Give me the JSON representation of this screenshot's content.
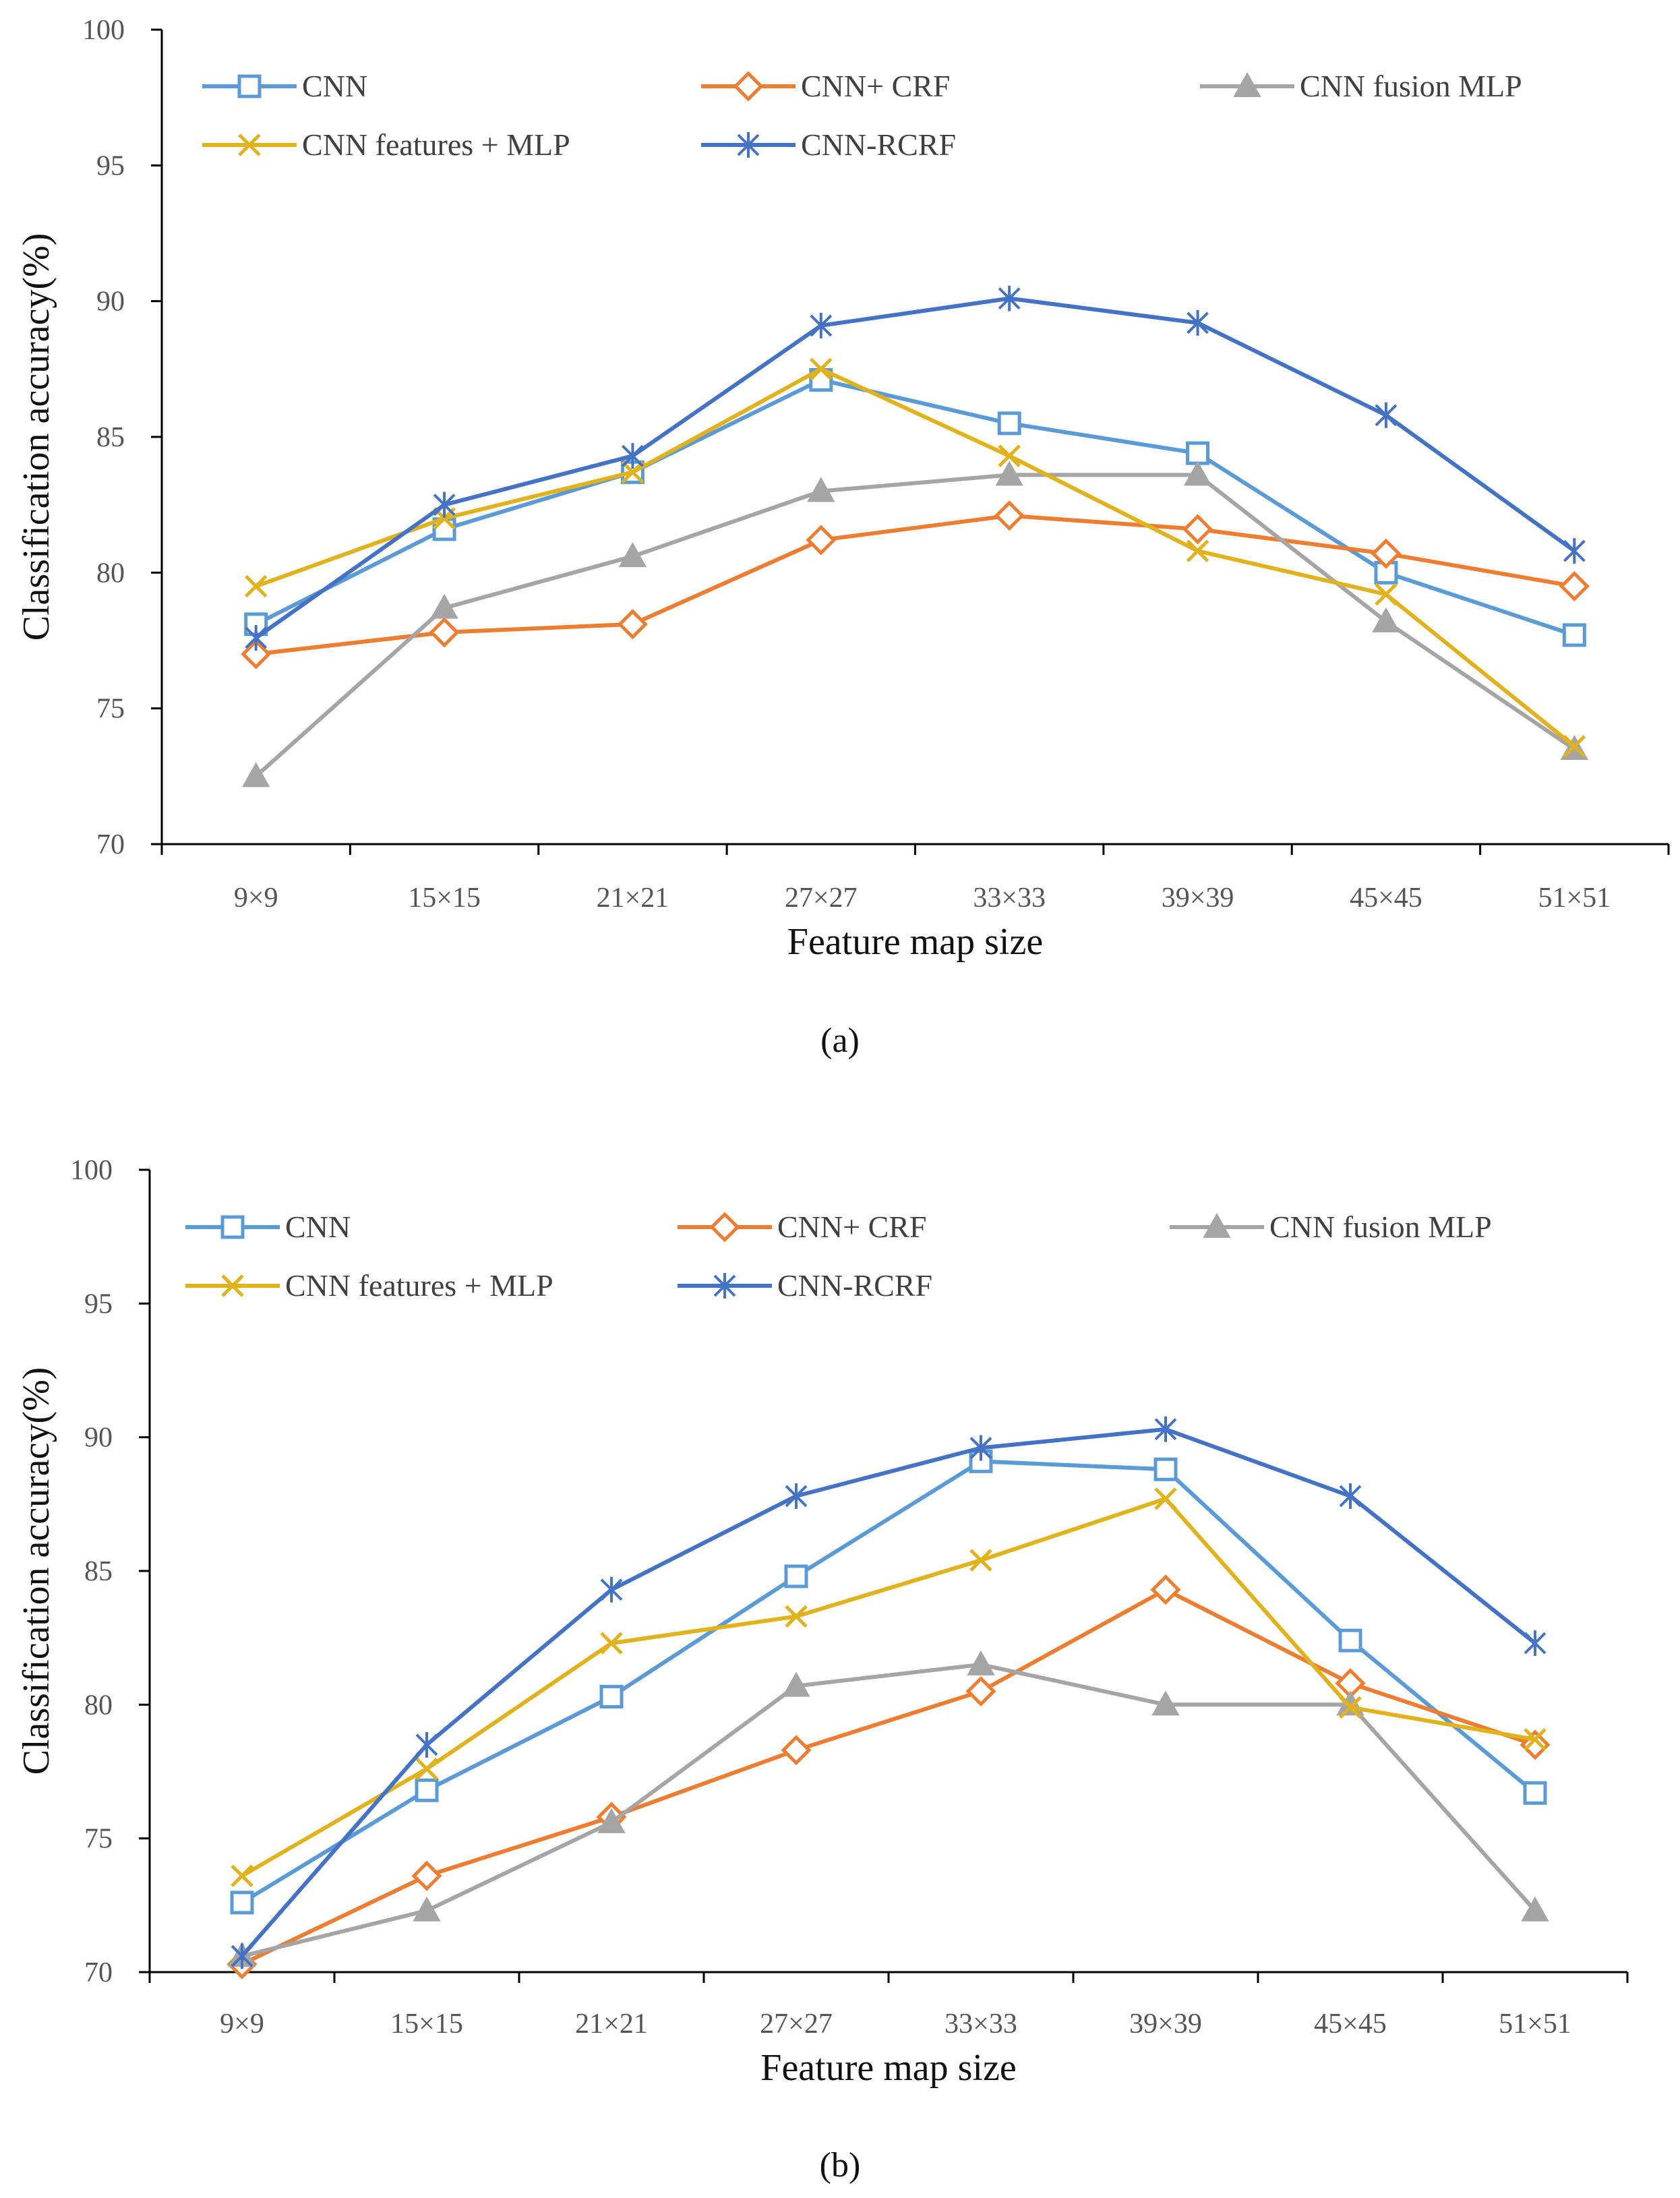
{
  "colors": {
    "CNN": "#5b9bd5",
    "CNN+ CRF": "#ed7d31",
    "CNN fusion MLP": "#a5a5a5",
    "CNN features + MLP": "#e0b21c",
    "CNN-RCRF": "#4472c4"
  },
  "chart_data": [
    {
      "type": "line",
      "caption": "(a)",
      "xlabel": "Feature map size",
      "ylabel": "Classification accuracy(%)",
      "ylim": [
        70,
        100
      ],
      "yticks": [
        "70",
        "75",
        "80",
        "85",
        "90",
        "95",
        "100"
      ],
      "categories": [
        "9×9",
        "15×15",
        "21×21",
        "27×27",
        "33×33",
        "39×39",
        "45×45",
        "51×51"
      ],
      "series": [
        {
          "name": "CNN",
          "marker": "square",
          "values": [
            78.1,
            81.6,
            83.7,
            87.1,
            85.5,
            84.4,
            80.0,
            77.7
          ]
        },
        {
          "name": "CNN+ CRF",
          "marker": "diamond",
          "values": [
            77.0,
            77.8,
            78.1,
            81.2,
            82.1,
            81.6,
            80.7,
            79.5
          ]
        },
        {
          "name": "CNN fusion MLP",
          "marker": "triangle",
          "values": [
            72.5,
            78.7,
            80.6,
            83.0,
            83.6,
            83.6,
            78.2,
            73.5
          ]
        },
        {
          "name": "CNN features + MLP",
          "marker": "x",
          "values": [
            79.5,
            82.0,
            83.7,
            87.5,
            84.3,
            80.8,
            79.2,
            73.6
          ]
        },
        {
          "name": "CNN-RCRF",
          "marker": "star",
          "values": [
            77.6,
            82.5,
            84.3,
            89.1,
            90.1,
            89.2,
            85.8,
            80.8
          ]
        }
      ]
    },
    {
      "type": "line",
      "caption": "(b)",
      "xlabel": "Feature map size",
      "ylabel": "Classification accuracy(%)",
      "ylim": [
        70,
        100
      ],
      "yticks": [
        "70",
        "75",
        "80",
        "85",
        "90",
        "95",
        "100"
      ],
      "categories": [
        "9×9",
        "15×15",
        "21×21",
        "27×27",
        "33×33",
        "39×39",
        "45×45",
        "51×51"
      ],
      "series": [
        {
          "name": "CNN",
          "marker": "square",
          "values": [
            72.6,
            76.8,
            80.3,
            84.8,
            89.1,
            88.8,
            82.4,
            76.7
          ]
        },
        {
          "name": "CNN+ CRF",
          "marker": "diamond",
          "values": [
            70.3,
            73.6,
            75.8,
            78.3,
            80.5,
            84.3,
            80.8,
            78.5
          ]
        },
        {
          "name": "CNN fusion MLP",
          "marker": "triangle",
          "values": [
            70.6,
            72.3,
            75.6,
            80.7,
            81.5,
            80.0,
            80.0,
            72.3
          ]
        },
        {
          "name": "CNN features + MLP",
          "marker": "x",
          "values": [
            73.6,
            77.6,
            82.3,
            83.3,
            85.4,
            87.7,
            79.9,
            78.7
          ]
        },
        {
          "name": "CNN-RCRF",
          "marker": "star",
          "values": [
            70.6,
            78.5,
            84.3,
            87.8,
            89.6,
            90.3,
            87.8,
            82.3
          ]
        }
      ]
    }
  ]
}
